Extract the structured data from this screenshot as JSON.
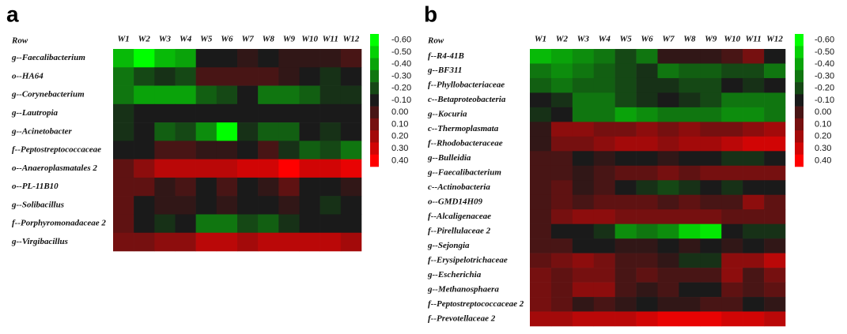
{
  "chart_data": [
    {
      "type": "heatmap",
      "panel_label": "a",
      "row_header": "Row",
      "columns": [
        "W1",
        "W2",
        "W3",
        "W4",
        "W5",
        "W6",
        "W7",
        "W8",
        "W9",
        "W10",
        "W11",
        "W12"
      ],
      "rows": [
        "g--Faecalibacterium",
        "o--HA64",
        "g--Corynebacterium",
        "g--Lautropia",
        "g--Acinetobacter",
        "f--Peptostreptococcaceae",
        "o--Anaeroplasmatales 2",
        "o--PL-11B10",
        "g--Solibacillus",
        "f--Porphyromonadaceae 2",
        "g--Virgibacillus"
      ],
      "values": [
        [
          -0.45,
          -0.6,
          -0.45,
          -0.4,
          -0.1,
          -0.1,
          -0.05,
          -0.1,
          -0.05,
          -0.05,
          -0.05,
          0.0
        ],
        [
          -0.3,
          -0.2,
          -0.15,
          -0.2,
          0.0,
          0.0,
          0.0,
          0.0,
          -0.05,
          -0.1,
          -0.15,
          -0.1
        ],
        [
          -0.3,
          -0.4,
          -0.4,
          -0.4,
          -0.25,
          -0.2,
          -0.1,
          -0.3,
          -0.3,
          -0.25,
          -0.15,
          -0.15
        ],
        [
          -0.15,
          -0.1,
          -0.1,
          -0.1,
          -0.1,
          -0.1,
          -0.1,
          -0.1,
          -0.1,
          -0.1,
          -0.1,
          -0.1
        ],
        [
          -0.15,
          -0.1,
          -0.25,
          -0.2,
          -0.35,
          -0.6,
          -0.15,
          -0.25,
          -0.25,
          -0.1,
          -0.15,
          -0.1
        ],
        [
          -0.1,
          -0.1,
          0.0,
          0.0,
          -0.05,
          -0.05,
          -0.1,
          0.0,
          -0.15,
          -0.25,
          -0.2,
          -0.3
        ],
        [
          0.05,
          0.15,
          0.25,
          0.25,
          0.25,
          0.25,
          0.3,
          0.3,
          0.4,
          0.3,
          0.3,
          0.35
        ],
        [
          0.05,
          0.05,
          -0.05,
          0.0,
          -0.1,
          0.0,
          -0.1,
          -0.05,
          0.05,
          -0.1,
          -0.1,
          -0.05
        ],
        [
          0.05,
          -0.1,
          -0.05,
          -0.05,
          -0.1,
          -0.05,
          -0.1,
          -0.1,
          -0.05,
          -0.1,
          -0.15,
          -0.1
        ],
        [
          0.05,
          -0.1,
          -0.15,
          -0.1,
          -0.3,
          -0.3,
          -0.2,
          -0.25,
          -0.15,
          -0.1,
          -0.1,
          -0.1
        ],
        [
          0.1,
          0.1,
          0.15,
          0.15,
          0.25,
          0.25,
          0.2,
          0.25,
          0.25,
          0.25,
          0.25,
          0.2
        ]
      ],
      "colors": [
        "#00ff00",
        "#1a1a1a",
        "#ff0000"
      ],
      "zlim": [
        -0.6,
        0.4
      ],
      "zticks": [
        {
          "value": -0.6,
          "label": "-0.60"
        },
        {
          "value": -0.5,
          "label": "-0.50"
        },
        {
          "value": -0.4,
          "label": "-0.40"
        },
        {
          "value": -0.3,
          "label": "-0.30"
        },
        {
          "value": -0.2,
          "label": "-0.20"
        },
        {
          "value": -0.1,
          "label": "-0.10"
        },
        {
          "value": 0,
          "label": "0.00"
        },
        {
          "value": 0.1,
          "label": "0.10"
        },
        {
          "value": 0.2,
          "label": "0.20"
        },
        {
          "value": 0.3,
          "label": "0.30"
        },
        {
          "value": 0.4,
          "label": "0.40"
        }
      ]
    },
    {
      "type": "heatmap",
      "panel_label": "b",
      "row_header": "Row",
      "columns": [
        "W1",
        "W2",
        "W3",
        "W4",
        "W5",
        "W6",
        "W7",
        "W8",
        "W9",
        "W10",
        "W11",
        "W12"
      ],
      "rows": [
        "f--R4-41B",
        "g--BF311",
        "f--Phyllobacteriaceae",
        "c--Betaproteobacteria",
        "g--Kocuria",
        "c--Thermoplasmata",
        "f--Rhodobacteraceae",
        "g--Bulleidia",
        "g--Faecalibacterium",
        "c--Actinobacteria",
        "o--GMD14H09",
        "f--Alcaligenaceae",
        "f--Pirellulaceae 2",
        "g--Sejongia",
        "f--Erysipelotrichaceae",
        "g--Escherichia",
        "g--Methanosphaera",
        "f--Peptostreptococcaceae 2",
        "f--Prevotellaceae 2"
      ],
      "values": [
        [
          -0.45,
          -0.4,
          -0.35,
          -0.3,
          -0.2,
          -0.3,
          -0.05,
          -0.05,
          -0.05,
          0.0,
          0.1,
          -0.1
        ],
        [
          -0.3,
          -0.35,
          -0.3,
          -0.25,
          -0.2,
          -0.15,
          -0.3,
          -0.25,
          -0.25,
          -0.2,
          -0.2,
          -0.3
        ],
        [
          -0.25,
          -0.3,
          -0.25,
          -0.25,
          -0.2,
          -0.15,
          -0.15,
          -0.2,
          -0.2,
          -0.1,
          -0.15,
          -0.1
        ],
        [
          -0.1,
          -0.15,
          -0.3,
          -0.3,
          -0.2,
          -0.15,
          -0.1,
          -0.15,
          -0.2,
          -0.3,
          -0.3,
          -0.3
        ],
        [
          -0.15,
          -0.1,
          -0.3,
          -0.3,
          -0.4,
          -0.35,
          -0.3,
          -0.3,
          -0.3,
          -0.35,
          -0.35,
          -0.3
        ],
        [
          -0.05,
          0.15,
          0.15,
          0.1,
          0.1,
          0.15,
          0.1,
          0.15,
          0.1,
          0.1,
          0.15,
          0.2
        ],
        [
          -0.05,
          0.1,
          0.1,
          0.15,
          0.2,
          0.2,
          0.15,
          0.2,
          0.2,
          0.25,
          0.3,
          0.3
        ],
        [
          0.0,
          0.0,
          -0.1,
          -0.05,
          -0.1,
          -0.1,
          -0.05,
          -0.1,
          -0.1,
          -0.15,
          -0.15,
          -0.1
        ],
        [
          0.0,
          0.0,
          -0.05,
          0.0,
          0.05,
          0.05,
          0.1,
          0.05,
          0.1,
          0.1,
          0.1,
          0.1
        ],
        [
          0.0,
          0.05,
          -0.05,
          0.0,
          -0.1,
          -0.15,
          -0.2,
          -0.15,
          -0.1,
          -0.15,
          -0.1,
          -0.1
        ],
        [
          0.0,
          0.05,
          0.0,
          0.05,
          0.05,
          0.05,
          0.0,
          0.05,
          0.0,
          0.0,
          0.15,
          0.05
        ],
        [
          0.0,
          0.1,
          0.15,
          0.15,
          0.1,
          0.1,
          0.1,
          0.1,
          0.1,
          0.05,
          0.05,
          0.05
        ],
        [
          0.0,
          -0.1,
          -0.1,
          -0.15,
          -0.35,
          -0.3,
          -0.35,
          -0.5,
          -0.55,
          -0.1,
          -0.15,
          -0.15
        ],
        [
          0.0,
          0.0,
          -0.1,
          -0.1,
          -0.05,
          -0.05,
          -0.1,
          -0.05,
          -0.1,
          -0.05,
          -0.1,
          -0.05
        ],
        [
          0.05,
          0.1,
          0.15,
          0.1,
          0.0,
          0.0,
          -0.05,
          -0.15,
          -0.15,
          0.15,
          0.15,
          0.25
        ],
        [
          0.1,
          0.05,
          0.1,
          0.1,
          0.0,
          0.05,
          0.0,
          0.0,
          0.0,
          0.15,
          0.0,
          0.1
        ],
        [
          0.1,
          0.05,
          0.15,
          0.15,
          0.0,
          -0.05,
          0.0,
          -0.1,
          -0.1,
          0.05,
          0.0,
          0.05
        ],
        [
          0.1,
          0.05,
          -0.05,
          0.0,
          -0.05,
          -0.1,
          -0.05,
          -0.05,
          0.0,
          0.0,
          -0.1,
          -0.05
        ],
        [
          0.2,
          0.2,
          0.25,
          0.25,
          0.25,
          0.3,
          0.35,
          0.35,
          0.35,
          0.3,
          0.3,
          0.25
        ]
      ],
      "colors": [
        "#00ff00",
        "#1a1a1a",
        "#ff0000"
      ],
      "zlim": [
        -0.6,
        0.4
      ],
      "zticks": [
        {
          "value": -0.6,
          "label": "-0.60"
        },
        {
          "value": -0.5,
          "label": "-0.50"
        },
        {
          "value": -0.4,
          "label": "-0.40"
        },
        {
          "value": -0.3,
          "label": "-0.30"
        },
        {
          "value": -0.2,
          "label": "-0.20"
        },
        {
          "value": -0.1,
          "label": "-0.10"
        },
        {
          "value": 0,
          "label": "0.00"
        },
        {
          "value": 0.1,
          "label": "0.10"
        },
        {
          "value": 0.2,
          "label": "0.20"
        },
        {
          "value": 0.3,
          "label": "0.30"
        },
        {
          "value": 0.4,
          "label": "0.40"
        }
      ]
    }
  ]
}
